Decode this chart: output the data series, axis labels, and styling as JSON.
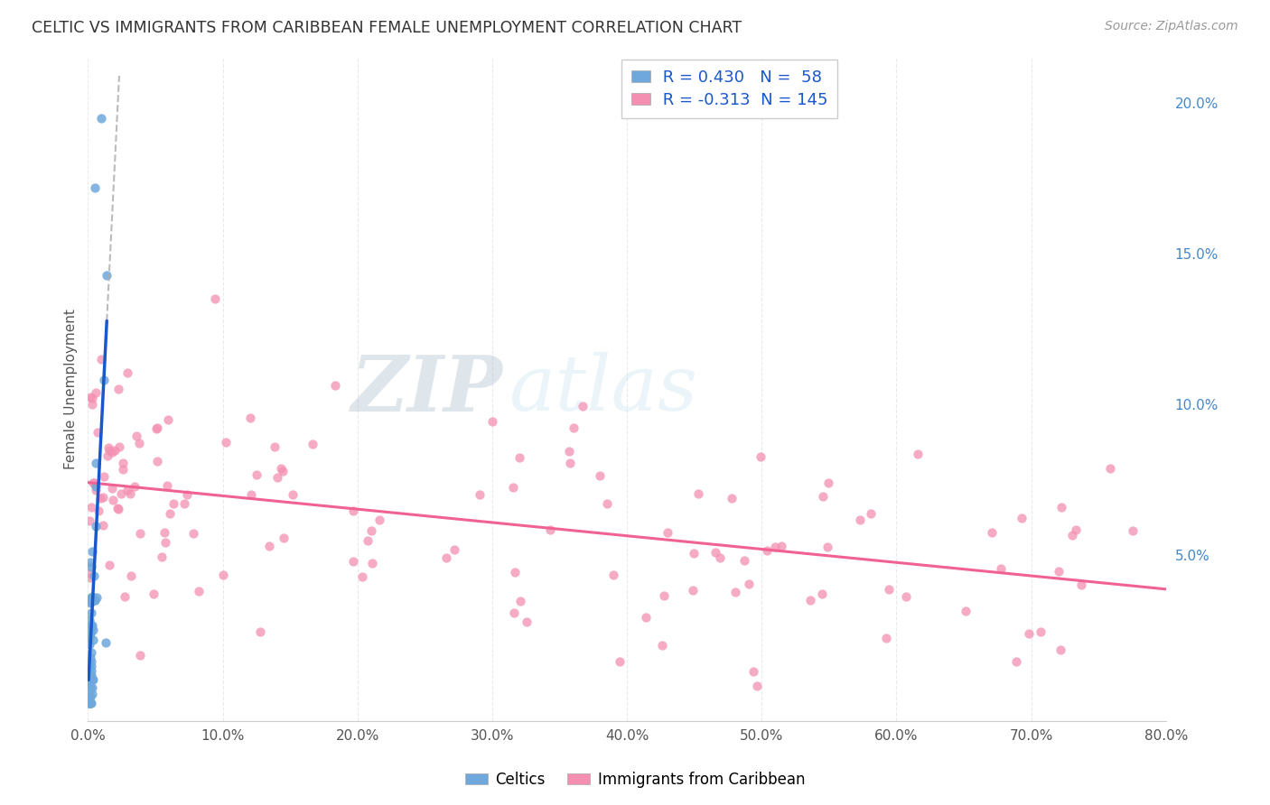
{
  "title": "CELTIC VS IMMIGRANTS FROM CARIBBEAN FEMALE UNEMPLOYMENT CORRELATION CHART",
  "source_text": "Source: ZipAtlas.com",
  "ylabel": "Female Unemployment",
  "xlim": [
    0.0,
    0.8
  ],
  "ylim": [
    -0.005,
    0.215
  ],
  "xticks": [
    0.0,
    0.1,
    0.2,
    0.3,
    0.4,
    0.5,
    0.6,
    0.7,
    0.8
  ],
  "xticklabels": [
    "0.0%",
    "10.0%",
    "20.0%",
    "30.0%",
    "40.0%",
    "50.0%",
    "60.0%",
    "70.0%",
    "80.0%"
  ],
  "yticks_right": [
    0.05,
    0.1,
    0.15,
    0.2
  ],
  "yticklabels_right": [
    "5.0%",
    "10.0%",
    "15.0%",
    "20.0%"
  ],
  "celtics_color": "#6ea8dc",
  "caribbean_color": "#f48fb1",
  "trend_celtics_color": "#1a56cc",
  "trend_caribbean_color": "#f06292",
  "legend_R_color": "#1a56cc",
  "legend_label_color": "#333333",
  "watermark_zip": "ZIP",
  "watermark_atlas": "atlas",
  "background_color": "#ffffff",
  "grid_color": "#dddddd",
  "right_axis_color": "#4488cc",
  "title_color": "#333333",
  "source_color": "#999999"
}
